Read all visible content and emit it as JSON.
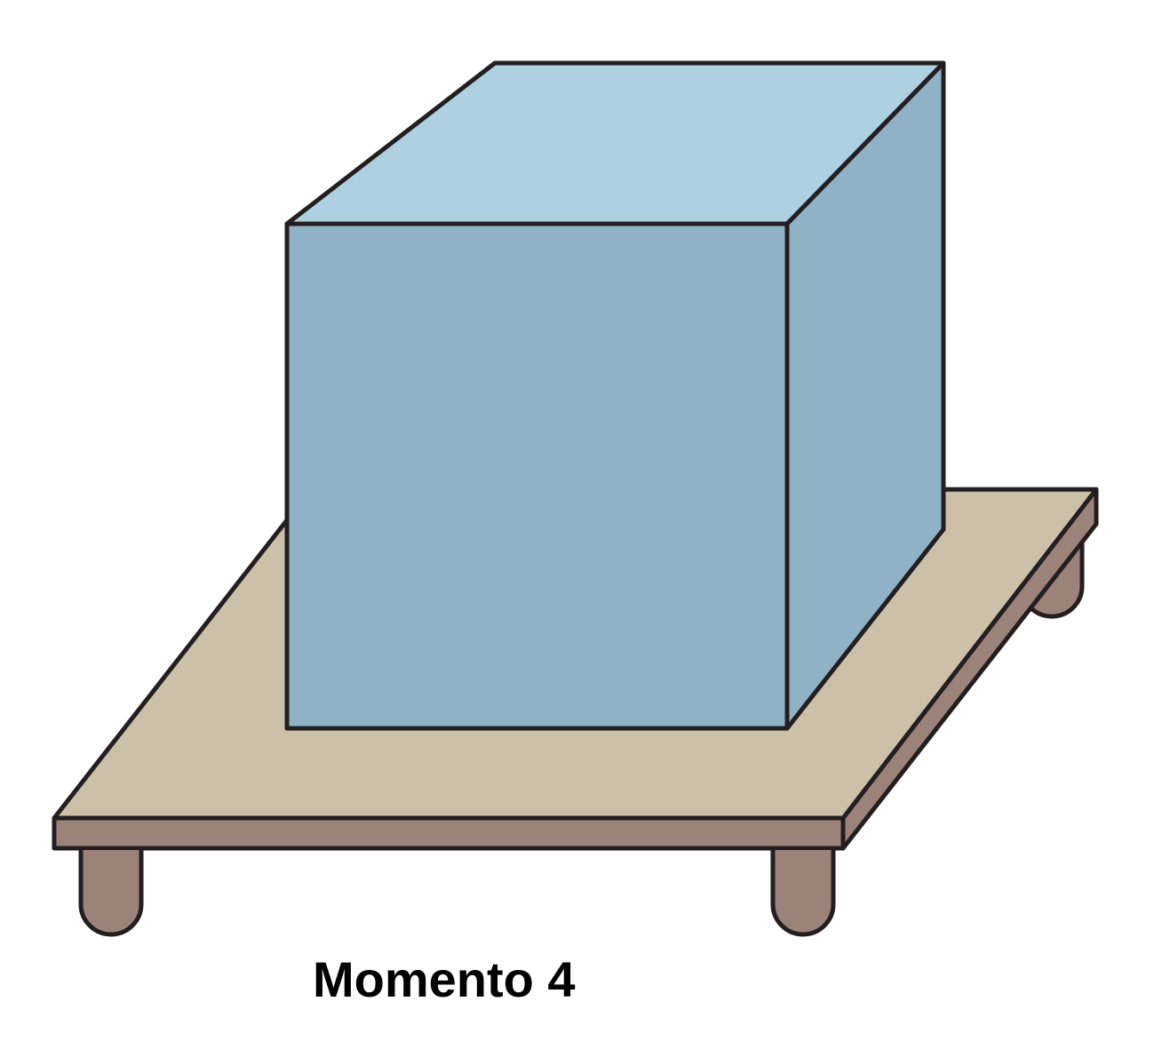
{
  "caption": "Momento 4",
  "colors": {
    "cube_top": "#aed1e2",
    "cube_front": "#8fb2c6",
    "cube_side": "#8fb2c6",
    "platform_top": "#cdc0a9",
    "platform_edge": "#9c8379",
    "leg": "#9c8379",
    "outline": "#231f20"
  },
  "objects": {
    "cube": "cube",
    "platform": "platform",
    "legs": [
      "leg",
      "leg",
      "leg"
    ]
  }
}
